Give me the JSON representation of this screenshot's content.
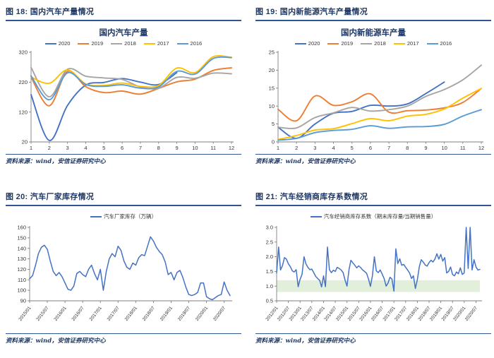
{
  "source_note": "资料来源：wind，安信证券研究中心",
  "colors": {
    "heading_navy": "#1f3864",
    "rule_blue": "#2f5597",
    "axis_gray": "#7f7f7f",
    "tick_text": "#333333",
    "band_green": "#e2efda",
    "y2020": "#4472c4",
    "y2019": "#ed7d31",
    "y2018": "#a5a5a5",
    "y2017": "#ffc000",
    "y2016": "#5b9bd5"
  },
  "figures": [
    {
      "heading": "图 18: 国内汽车产量情况",
      "source_note": "资料来源：wind，安信证券研究中心",
      "chart_data": {
        "type": "line",
        "title": "国内汽车产量",
        "categories": [
          "1",
          "2",
          "3",
          "4",
          "5",
          "6",
          "7",
          "8",
          "9",
          "10",
          "11",
          "12"
        ],
        "ylim": [
          20,
          320
        ],
        "yticks": [
          20,
          120,
          220,
          320
        ],
        "grid": false,
        "legend_position": "top",
        "series": [
          {
            "name": "2020",
            "color": "#4472c4",
            "values": [
              178,
              25,
              142,
              210,
              219,
              232,
              220,
              212,
              252
            ]
          },
          {
            "name": "2019",
            "color": "#ed7d31",
            "values": [
              237,
              141,
              256,
              205,
              185,
              190,
              180,
              199,
              221,
              230,
              259,
              268
            ]
          },
          {
            "name": "2018",
            "color": "#a5a5a5",
            "values": [
              269,
              171,
              263,
              240,
              234,
              229,
              204,
              200,
              236,
              233,
              250,
              248
            ]
          },
          {
            "name": "2017",
            "color": "#ffc000",
            "values": [
              237,
              216,
              261,
              214,
              209,
              217,
              206,
              209,
              267,
              252,
              305,
              303
            ]
          },
          {
            "name": "2016",
            "color": "#5b9bd5",
            "values": [
              241,
              161,
              251,
              212,
              206,
              211,
              200,
              204,
              256,
              247,
              299,
              302
            ]
          }
        ]
      }
    },
    {
      "heading": "图 19: 国内新能源汽车产量情况",
      "source_note": "资料来源：wind，安信证券研究中心",
      "chart_data": {
        "type": "line",
        "title": "国内新能源车产量",
        "categories": [
          "1",
          "2",
          "3",
          "4",
          "5",
          "6",
          "7",
          "8",
          "9",
          "10",
          "11",
          "12"
        ],
        "ylim": [
          0,
          25
        ],
        "yticks": [
          0,
          5,
          10,
          15,
          20,
          25
        ],
        "grid": false,
        "legend_position": "top",
        "series": [
          {
            "name": "2020",
            "color": "#4472c4",
            "values": [
              4.1,
              1.0,
              5.0,
              8.0,
              8.5,
              10.2,
              10.0,
              10.6,
              13.5,
              16.7
            ]
          },
          {
            "name": "2019",
            "color": "#ed7d31",
            "values": [
              9.1,
              5.9,
              12.8,
              10.2,
              11.2,
              13.4,
              8.3,
              8.7,
              8.9,
              9.5,
              11.0,
              14.9
            ]
          },
          {
            "name": "2018",
            "color": "#a5a5a5",
            "values": [
              4.1,
              3.9,
              6.8,
              8.1,
              9.6,
              8.6,
              9.0,
              10.0,
              12.7,
              14.6,
              17.3,
              21.4
            ]
          },
          {
            "name": "2017",
            "color": "#ffc000",
            "values": [
              0.7,
              1.8,
              3.3,
              3.7,
              5.1,
              6.5,
              5.9,
              7.2,
              7.7,
              9.2,
              12.2,
              14.9
            ]
          },
          {
            "name": "2016",
            "color": "#5b9bd5",
            "values": [
              0.5,
              1.0,
              2.6,
              3.2,
              3.5,
              4.5,
              3.8,
              4.2,
              4.3,
              4.9,
              7.2,
              9.0
            ]
          }
        ]
      }
    },
    {
      "heading": "图 20: 汽车厂家库存情况",
      "source_note": "资料来源：wind，安信证券研究中心",
      "chart_data": {
        "type": "line",
        "title": "",
        "x_count": 69,
        "x_start": "2015/01",
        "xticks": {
          "every": 6,
          "labels": [
            "2015/01",
            "2015/07",
            "2016/01",
            "2016/07",
            "2017/01",
            "2017/07",
            "2018/01",
            "2018/07",
            "2019/01",
            "2019/07",
            "2020/01",
            "2020/07"
          ]
        },
        "ylim": [
          90,
          160
        ],
        "yticks": [
          90,
          100,
          110,
          120,
          130,
          140,
          150,
          160
        ],
        "grid": false,
        "legend_position": "top",
        "series": [
          {
            "name": "汽车厂家库存（万辆）",
            "color": "#4472c4",
            "values": [
              111,
              114,
              124,
              135,
              141,
              143,
              139,
              128,
              118,
              114,
              117,
              113,
              107,
              101,
              100,
              104,
              116,
              118,
              115,
              113,
              120,
              124,
              116,
              110,
              120,
              100,
              118,
              130,
              135,
              132,
              142,
              138,
              128,
              122,
              120,
              126,
              124,
              131,
              134,
              133,
              142,
              151,
              147,
              141,
              137,
              134,
              127,
              115,
              117,
              110,
              117,
              119,
              112,
              103,
              96,
              95,
              96,
              98,
              107,
              107,
              94,
              92,
              91,
              93,
              95,
              96,
              108,
              100,
              95
            ]
          }
        ]
      }
    },
    {
      "heading": "图 21: 汽车经销商库存系数情况",
      "source_note": "资料来源：wind，安信证券研究中心",
      "chart_data": {
        "type": "line",
        "title": "",
        "x_count": 105,
        "x_start": "2012/01",
        "xticks": {
          "every": 6,
          "labels": [
            "2012/01",
            "2012/07",
            "2013/01",
            "2013/07",
            "2014/01",
            "2014/07",
            "2015/01",
            "2015/07",
            "2016/01",
            "2016/07",
            "2017/01",
            "2017/07",
            "2018/01",
            "2018/07",
            "2019/01",
            "2019/07",
            "2020/01",
            "2020/07"
          ]
        },
        "ylim": [
          0.5,
          3.0
        ],
        "yticks": [
          0.5,
          1.0,
          1.5,
          2.0,
          2.5,
          3.0
        ],
        "ytick_labels": [
          "0.5",
          "1.0",
          "1.5",
          "2.0",
          "2.5",
          "3.0"
        ],
        "band": {
          "from": 0.8,
          "to": 1.2,
          "color": "#e2efda"
        },
        "grid": false,
        "legend_position": "top",
        "series": [
          {
            "name": "汽车经销商库存系数（期末库存量/当期销售量）",
            "color": "#4472c4",
            "values": [
              1.45,
              2.33,
              1.55,
              1.7,
              1.97,
              1.92,
              1.76,
              1.66,
              1.52,
              1.48,
              1.56,
              0.98,
              1.23,
              1.4,
              2.0,
              1.76,
              1.64,
              1.56,
              1.58,
              1.46,
              1.33,
              1.26,
              1.2,
              0.97,
              1.35,
              0.98,
              2.33,
              1.56,
              1.46,
              1.54,
              1.5,
              1.64,
              1.6,
              1.55,
              1.46,
              1.21,
              1.0,
              1.55,
              1.88,
              1.79,
              1.71,
              1.62,
              1.69,
              1.63,
              1.55,
              1.5,
              1.44,
              1.24,
              0.99,
              1.35,
              2.0,
              1.52,
              1.46,
              1.55,
              1.41,
              1.26,
              1.0,
              1.1,
              1.3,
              1.24,
              0.83,
              2.27,
              1.77,
              1.93,
              1.71,
              1.74,
              1.64,
              1.55,
              1.45,
              1.26,
              1.35,
              0.92,
              1.22,
              1.66,
              1.9,
              1.82,
              1.72,
              1.68,
              1.8,
              1.88,
              1.82,
              1.92,
              2.1,
              1.92,
              2.08,
              1.85,
              1.97,
              1.45,
              1.5,
              1.65,
              1.4,
              1.35,
              1.48,
              1.42,
              1.62,
              1.4,
              1.45,
              3.0,
              1.6,
              3.0,
              1.55,
              1.9,
              1.65,
              1.55,
              1.57
            ]
          }
        ]
      }
    }
  ]
}
